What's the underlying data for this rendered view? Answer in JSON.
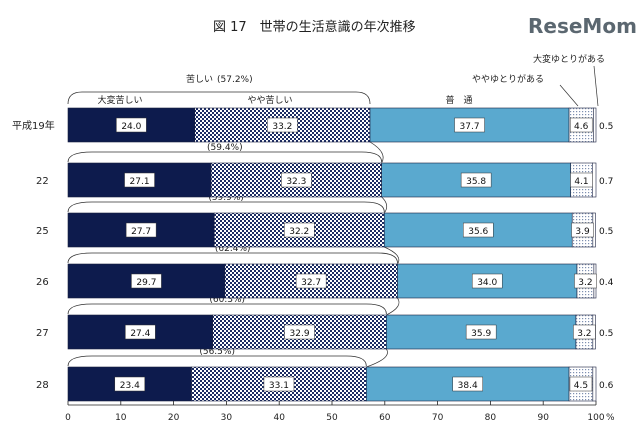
{
  "chart_data": {
    "type": "bar",
    "stacked": true,
    "orientation": "horizontal",
    "title": "図 17　世帯の生活意識の年次推移",
    "categories": [
      "平成19年",
      "22",
      "25",
      "26",
      "27",
      "28"
    ],
    "series": [
      {
        "name": "大変苦しい",
        "color": "#0d1b4d",
        "pattern": "solid",
        "values": [
          24.0,
          27.1,
          27.7,
          29.7,
          27.4,
          23.4
        ]
      },
      {
        "name": "やや苦しい",
        "color": "#1c2c63",
        "pattern": "checker",
        "values": [
          33.2,
          32.3,
          32.2,
          32.7,
          32.9,
          33.1
        ]
      },
      {
        "name": "普　通",
        "color": "#5aa9cf",
        "pattern": "solid",
        "values": [
          37.7,
          35.8,
          35.6,
          34.0,
          35.9,
          38.4
        ]
      },
      {
        "name": "ややゆとりがある",
        "color": "#cfd8e6",
        "pattern": "dots",
        "values": [
          4.6,
          4.1,
          3.9,
          3.2,
          3.2,
          4.5
        ]
      },
      {
        "name": "大変ゆとりがある",
        "color": "#ffffff",
        "pattern": "solid",
        "values": [
          0.5,
          0.7,
          0.5,
          0.4,
          0.5,
          0.6
        ]
      }
    ],
    "value_labels": {
      "s0": [
        "24.0",
        "27.1",
        "27.7",
        "29.7",
        "27.4",
        "23.4"
      ],
      "s1": [
        "33.2",
        "32.3",
        "32.2",
        "32.7",
        "32.9",
        "33.1"
      ],
      "s2": [
        "37.7",
        "35.8",
        "35.6",
        "34.0",
        "35.9",
        "38.4"
      ],
      "s3": [
        "4.6",
        "4.1",
        "3.9",
        "3.2",
        "3.2",
        "4.5"
      ],
      "s4": [
        "0.5",
        "0.7",
        "0.5",
        "0.4",
        "0.5",
        "0.6"
      ]
    },
    "hardship_totals": [
      "(57.2%)",
      "(59.4%)",
      "(59.9%)",
      "(62.4%)",
      "(60.3%)",
      "(56.5%)"
    ],
    "hardship_label": "苦しい",
    "x_ticks": [
      "0",
      "10",
      "20",
      "30",
      "40",
      "50",
      "60",
      "70",
      "80",
      "90",
      "100"
    ],
    "xlim": [
      0,
      100
    ],
    "x_unit": "%",
    "grid": false
  },
  "brand": "ReseMom"
}
